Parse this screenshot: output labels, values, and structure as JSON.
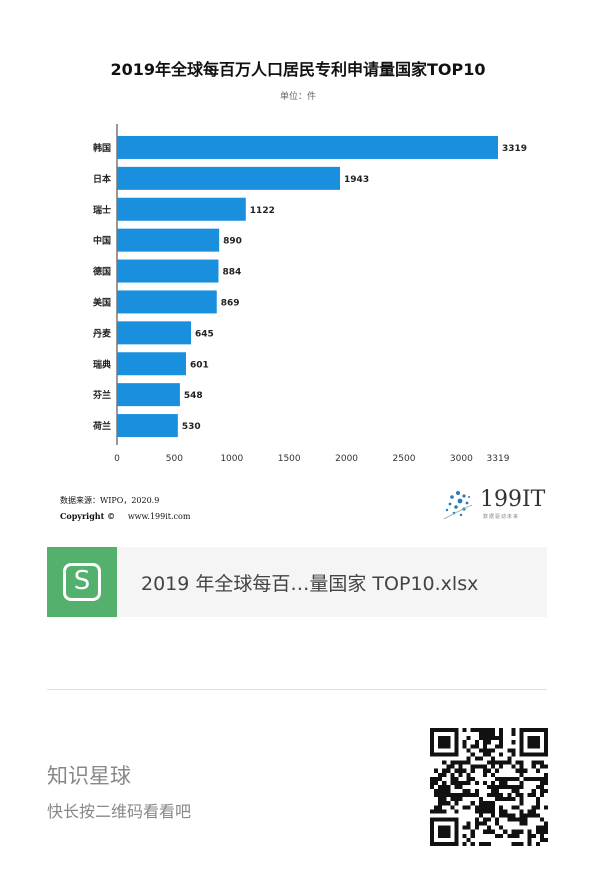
{
  "chart_data": {
    "type": "bar",
    "orientation": "horizontal",
    "title": "2019年全球每百万人口居民专利申请量国家TOP10",
    "unit": "单位：件",
    "categories": [
      "韩国",
      "日本",
      "瑞士",
      "中国",
      "德国",
      "美国",
      "丹麦",
      "瑞典",
      "芬兰",
      "荷兰"
    ],
    "values": [
      3319,
      1943,
      1122,
      890,
      884,
      869,
      645,
      601,
      548,
      530
    ],
    "xticks": [
      "0",
      "500",
      "1000",
      "1500",
      "2000",
      "2500",
      "3000",
      "3319"
    ],
    "xlim": [
      0,
      3319
    ],
    "bar_color": "#1a8fde"
  },
  "source": {
    "line1": "数据来源：WIPO，2020.9",
    "copyright_label": "Copyright ©",
    "website": "www.199it.com"
  },
  "logo": {
    "text": "199IT",
    "subtitle": "数据驱动未来"
  },
  "file_card": {
    "name": "2019 年全球每百…量国家 TOP10.xlsx",
    "icon": "spreadsheet-s-icon"
  },
  "planet": {
    "title": "知识星球",
    "subtitle": "快长按二维码看看吧"
  }
}
